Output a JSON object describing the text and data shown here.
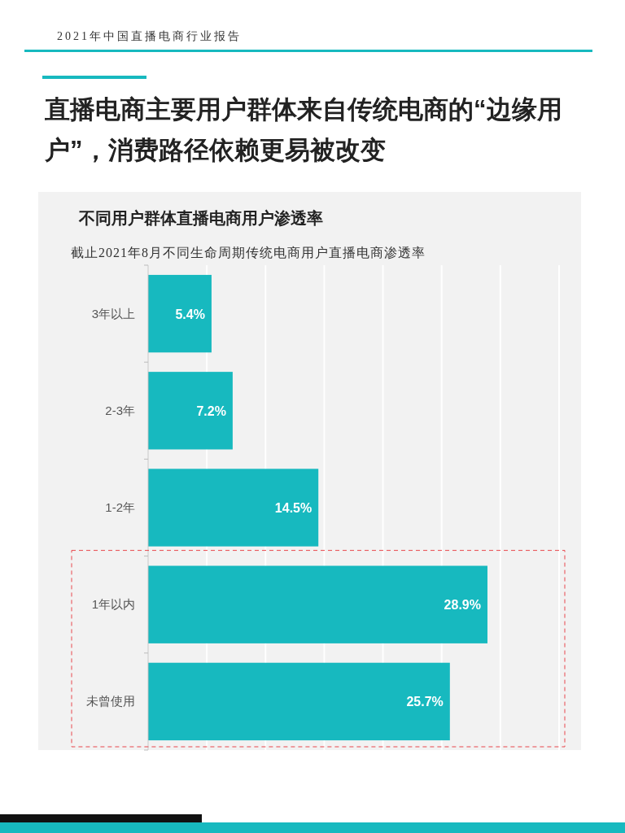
{
  "chart_data": {
    "type": "bar",
    "orientation": "horizontal",
    "title": "不同用户群体直播电商用户渗透率",
    "subtitle": "截止2021年8月不同生命周期传统电商用户直播电商渗透率",
    "annotations": [
      "2021年中国直播电商行业报告",
      "直播电商主要用户群体来自传统电商的“边缘用户”，消费路径依赖更易被改变"
    ],
    "categories": [
      "3年以上",
      "2-3年",
      "1-2年",
      "1年以内",
      "未曾使用"
    ],
    "values": [
      5.4,
      7.2,
      14.5,
      28.9,
      25.7
    ],
    "value_labels": [
      "5.4%",
      "7.2%",
      "14.5%",
      "28.9%",
      "25.7%"
    ],
    "color": "#17b9bf",
    "xlim": [
      0,
      35
    ],
    "xticks": [
      {
        "value": 0,
        "label": null
      },
      {
        "value": 5,
        "label": null
      },
      {
        "value": 10,
        "label": null
      },
      {
        "value": 15,
        "label": null
      },
      {
        "value": 20,
        "label": null
      },
      {
        "value": 25,
        "label": null
      },
      {
        "value": 30,
        "label": null
      },
      {
        "value": 35,
        "label": null
      }
    ],
    "tick_labels": "y",
    "grid": "x"
  }
}
